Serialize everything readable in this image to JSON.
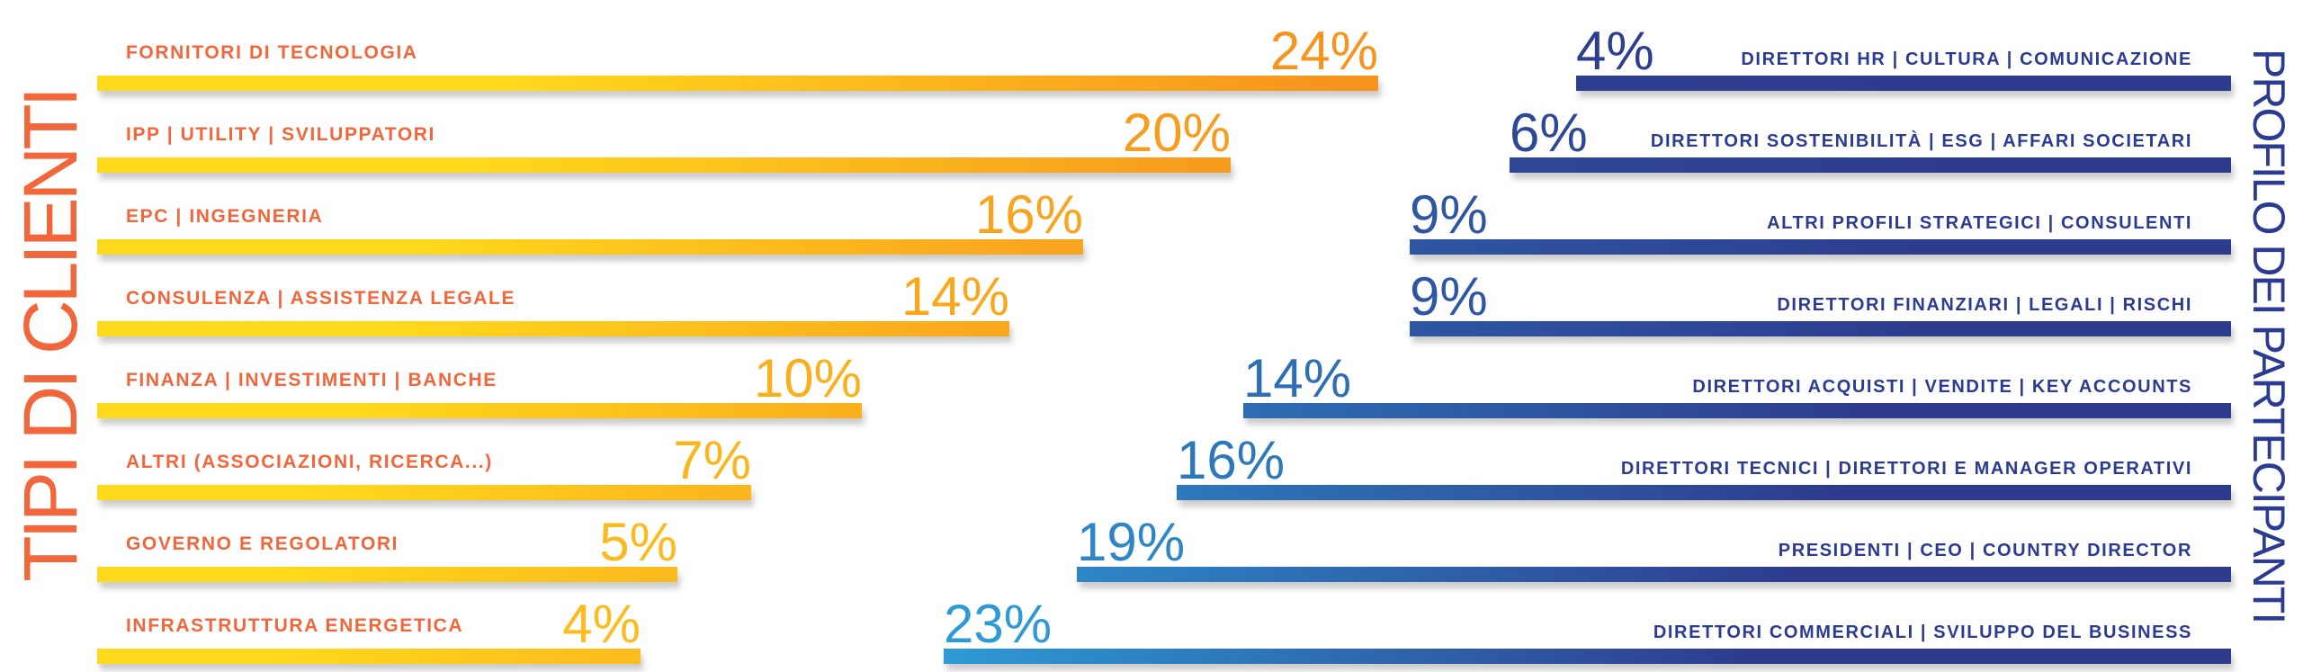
{
  "page": {
    "background": "#FFFFFF"
  },
  "palette": {
    "orange_label": "#F1663A",
    "yellow_bar_start": "#FFD91C",
    "orange_bar_end": "#F7941E",
    "navy": "#2E3C8E",
    "steel_blue_tip": "#2D9AD5",
    "navy_label": "#2B3B92"
  },
  "chart_data": [
    {
      "id": "client-types",
      "type": "bar",
      "orientation": "horizontal",
      "side": "left",
      "bars_aligned": "left",
      "value_label_position": "end-of-bar-above",
      "title": "TIPI DI CLIENTI",
      "unit": "%",
      "value_label_format": "{v}%",
      "categories": [
        "FORNITORI DI TECNOLOGIA",
        "IPP | UTILITY | SVILUPPATORI",
        "EPC | INGEGNERIA",
        "CONSULENZA | ASSISTENZA LEGALE",
        "FINANZA | INVESTIMENTI | BANCHE",
        "ALTRI (ASSOCIAZIONI, RICERCA...)",
        "GOVERNO E REGOLATORI",
        "INFRASTRUTTURA ENERGETICA"
      ],
      "values": [
        24,
        20,
        16,
        14,
        10,
        7,
        5,
        4
      ],
      "colors": {
        "bar_gradient_start": "#FFD91C",
        "bar_gradient_end": "#F7941E",
        "category_label": "#F1663A",
        "title": "#F1663A"
      }
    },
    {
      "id": "participant-profile",
      "type": "bar",
      "orientation": "horizontal",
      "side": "right",
      "bars_aligned": "right",
      "value_label_position": "start-of-bar-above",
      "title": "PROFILO DEI PARTECIPANTI",
      "unit": "%",
      "value_label_format": "{v}%",
      "categories": [
        "DIRETTORI HR | CULTURA | COMUNICAZIONE",
        "DIRETTORI SOSTENIBILITÀ | ESG | AFFARI SOCIETARI",
        "ALTRI PROFILI STRATEGICI | CONSULENTI",
        "DIRETTORI FINANZIARI | LEGALI | RISCHI",
        "DIRETTORI ACQUISTI | VENDITE | KEY ACCOUNTS",
        "DIRETTORI TECNICI | DIRETTORI E MANAGER OPERATIVI",
        "PRESIDENTI | CEO | COUNTRY DIRECTOR",
        "DIRETTORI COMMERCIALI | SVILUPPO DEL BUSINESS"
      ],
      "values": [
        4,
        6,
        9,
        9,
        14,
        16,
        19,
        23
      ],
      "colors": {
        "bar_solid": "#2E3C8E",
        "bar_tip_light": "#2D9AD5",
        "category_label": "#2B3B92",
        "title": "#2B3B92"
      }
    }
  ]
}
